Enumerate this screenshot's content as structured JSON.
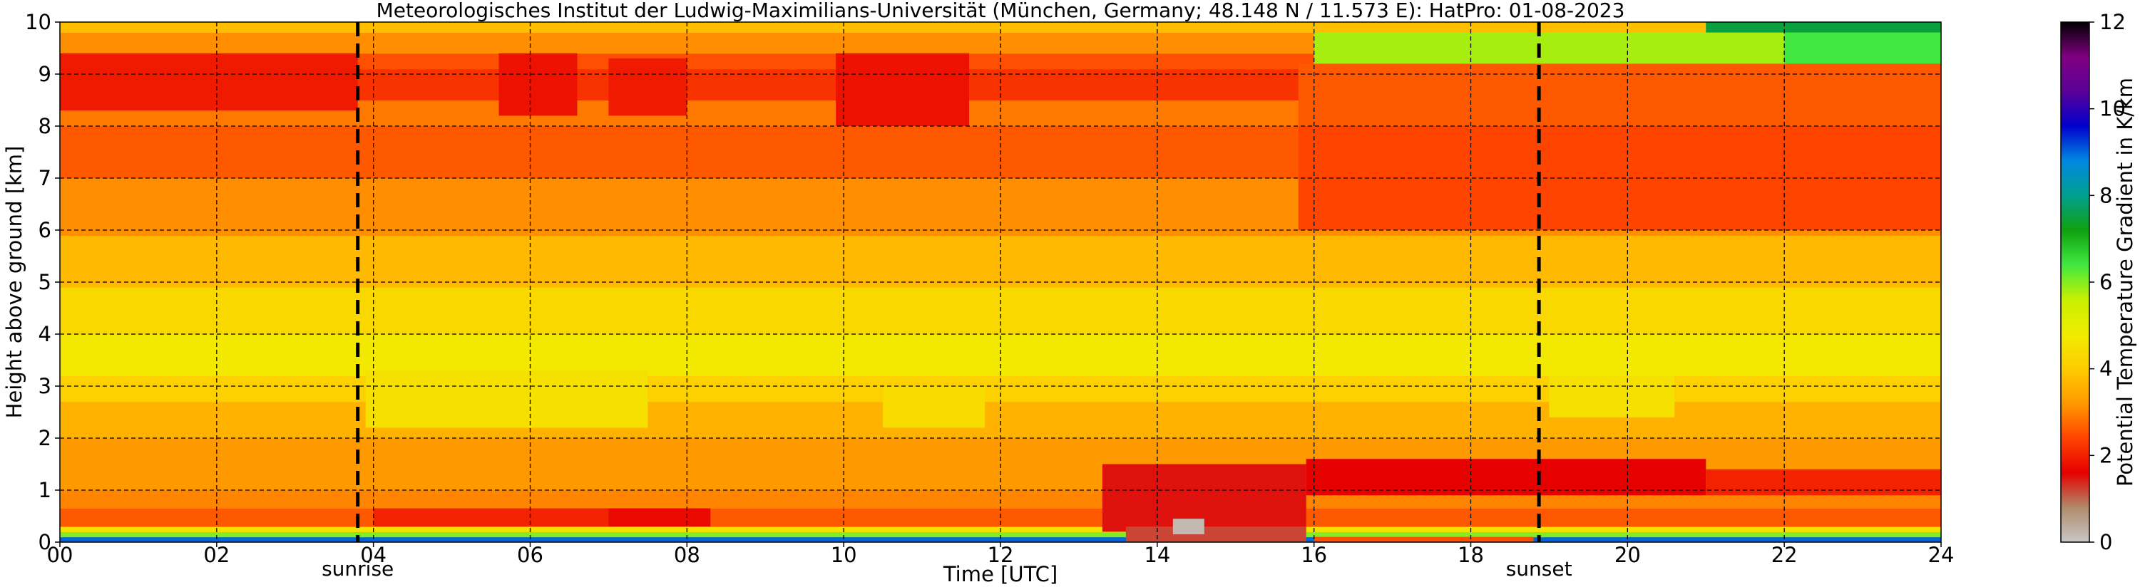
{
  "chart_data": {
    "type": "heatmap",
    "title": "Meteorologisches Institut der Ludwig-Maximilians-Universität (München, Germany; 48.148 N / 11.573 E):    HatPro: 01-08-2023",
    "xlabel": "Time [UTC]",
    "ylabel": "Height above ground [km]",
    "xlim": [
      0,
      24
    ],
    "ylim": [
      0,
      10
    ],
    "x_ticks": [
      0,
      2,
      4,
      6,
      8,
      10,
      12,
      14,
      16,
      18,
      20,
      22,
      24
    ],
    "x_tick_labels": [
      "00",
      "02",
      "04",
      "06",
      "08",
      "10",
      "12",
      "14",
      "16",
      "18",
      "20",
      "22",
      "24"
    ],
    "y_ticks": [
      0,
      1,
      2,
      3,
      4,
      5,
      6,
      7,
      8,
      9,
      10
    ],
    "y_tick_labels": [
      "0",
      "1",
      "2",
      "3",
      "4",
      "5",
      "6",
      "7",
      "8",
      "9",
      "10"
    ],
    "grid": true,
    "colorbar": {
      "label": "Potential Temperature Gradient in K/km",
      "range": [
        0,
        12
      ],
      "ticks": [
        0,
        2,
        4,
        6,
        8,
        10,
        12
      ],
      "tick_labels": [
        "0",
        "2",
        "4",
        "6",
        "8",
        "10",
        "12"
      ],
      "colors": [
        "#c8c8c8",
        "#b08a6a",
        "#e60000",
        "#ff4400",
        "#ff9900",
        "#ffcc00",
        "#f0ec00",
        "#c8f000",
        "#40e840",
        "#10a010",
        "#00a090",
        "#0088e0",
        "#0000cc",
        "#5a0098",
        "#800080",
        "#000000"
      ]
    },
    "markers": [
      {
        "label": "sunrise",
        "x": 3.8
      },
      {
        "label": "sunset",
        "x": 18.87
      }
    ],
    "layers": [
      {
        "h0": 0.0,
        "h1": 0.1,
        "value": 9.0
      },
      {
        "h0": 0.1,
        "h1": 0.2,
        "value": 6.0
      },
      {
        "h0": 0.2,
        "h1": 0.3,
        "value": 4.5
      },
      {
        "h0": 0.3,
        "h1": 0.65,
        "value": 2.6
      },
      {
        "h0": 0.65,
        "h1": 1.0,
        "value": 3.0
      },
      {
        "h0": 1.0,
        "h1": 2.0,
        "value": 3.2
      },
      {
        "h0": 2.0,
        "h1": 2.7,
        "value": 3.6
      },
      {
        "h0": 2.7,
        "h1": 3.2,
        "value": 4.1
      },
      {
        "h0": 3.2,
        "h1": 4.0,
        "value": 4.7
      },
      {
        "h0": 4.0,
        "h1": 4.9,
        "value": 4.3
      },
      {
        "h0": 4.9,
        "h1": 5.9,
        "value": 3.7
      },
      {
        "h0": 5.9,
        "h1": 7.0,
        "value": 3.1
      },
      {
        "h0": 7.0,
        "h1": 8.0,
        "value": 2.6
      },
      {
        "h0": 8.0,
        "h1": 8.5,
        "value": 2.9
      },
      {
        "h0": 8.5,
        "h1": 9.1,
        "value": 2.2
      },
      {
        "h0": 9.1,
        "h1": 9.4,
        "value": 2.5
      },
      {
        "h0": 9.4,
        "h1": 9.8,
        "value": 3.1
      },
      {
        "h0": 9.8,
        "h1": 10.0,
        "value": 3.8
      }
    ],
    "features": [
      {
        "t0": 0.0,
        "t1": 3.8,
        "h0": 8.3,
        "h1": 9.4,
        "value": 1.9
      },
      {
        "t0": 5.6,
        "t1": 6.6,
        "h0": 8.2,
        "h1": 9.4,
        "value": 1.8
      },
      {
        "t0": 7.0,
        "t1": 8.0,
        "h0": 8.2,
        "h1": 9.3,
        "value": 1.9
      },
      {
        "t0": 9.9,
        "t1": 11.6,
        "h0": 8.0,
        "h1": 9.4,
        "value": 1.8
      },
      {
        "t0": 15.8,
        "t1": 24.0,
        "h0": 6.0,
        "h1": 8.0,
        "value": 2.4
      },
      {
        "t0": 15.8,
        "t1": 24.0,
        "h0": 8.0,
        "h1": 9.2,
        "value": 2.6
      },
      {
        "t0": 16.0,
        "t1": 22.0,
        "h0": 9.2,
        "h1": 9.8,
        "value": 5.8
      },
      {
        "t0": 22.0,
        "t1": 24.0,
        "h0": 9.2,
        "h1": 9.8,
        "value": 6.4
      },
      {
        "t0": 21.0,
        "t1": 24.0,
        "h0": 9.8,
        "h1": 10.0,
        "value": 7.5
      },
      {
        "t0": 3.9,
        "t1": 7.5,
        "h0": 2.2,
        "h1": 3.3,
        "value": 4.5
      },
      {
        "t0": 10.5,
        "t1": 11.8,
        "h0": 2.2,
        "h1": 3.0,
        "value": 4.4
      },
      {
        "t0": 19.0,
        "t1": 20.6,
        "h0": 2.4,
        "h1": 3.2,
        "value": 4.5
      },
      {
        "t0": 4.0,
        "t1": 7.0,
        "h0": 0.3,
        "h1": 0.65,
        "value": 2.0
      },
      {
        "t0": 7.0,
        "t1": 8.3,
        "h0": 0.3,
        "h1": 0.65,
        "value": 1.7
      },
      {
        "t0": 13.3,
        "t1": 15.9,
        "h0": 0.2,
        "h1": 1.5,
        "value": 1.5
      },
      {
        "t0": 13.6,
        "t1": 15.9,
        "h0": 0.0,
        "h1": 0.3,
        "value": 1.2
      },
      {
        "t0": 14.2,
        "t1": 14.6,
        "h0": 0.15,
        "h1": 0.45,
        "value": 0.2
      },
      {
        "t0": 15.9,
        "t1": 21.0,
        "h0": 0.9,
        "h1": 1.6,
        "value": 1.6
      },
      {
        "t0": 21.0,
        "t1": 24.0,
        "h0": 0.9,
        "h1": 1.4,
        "value": 2.0
      },
      {
        "t0": 16.0,
        "t1": 18.8,
        "h0": 0.0,
        "h1": 0.1,
        "value": 2.5
      }
    ]
  }
}
